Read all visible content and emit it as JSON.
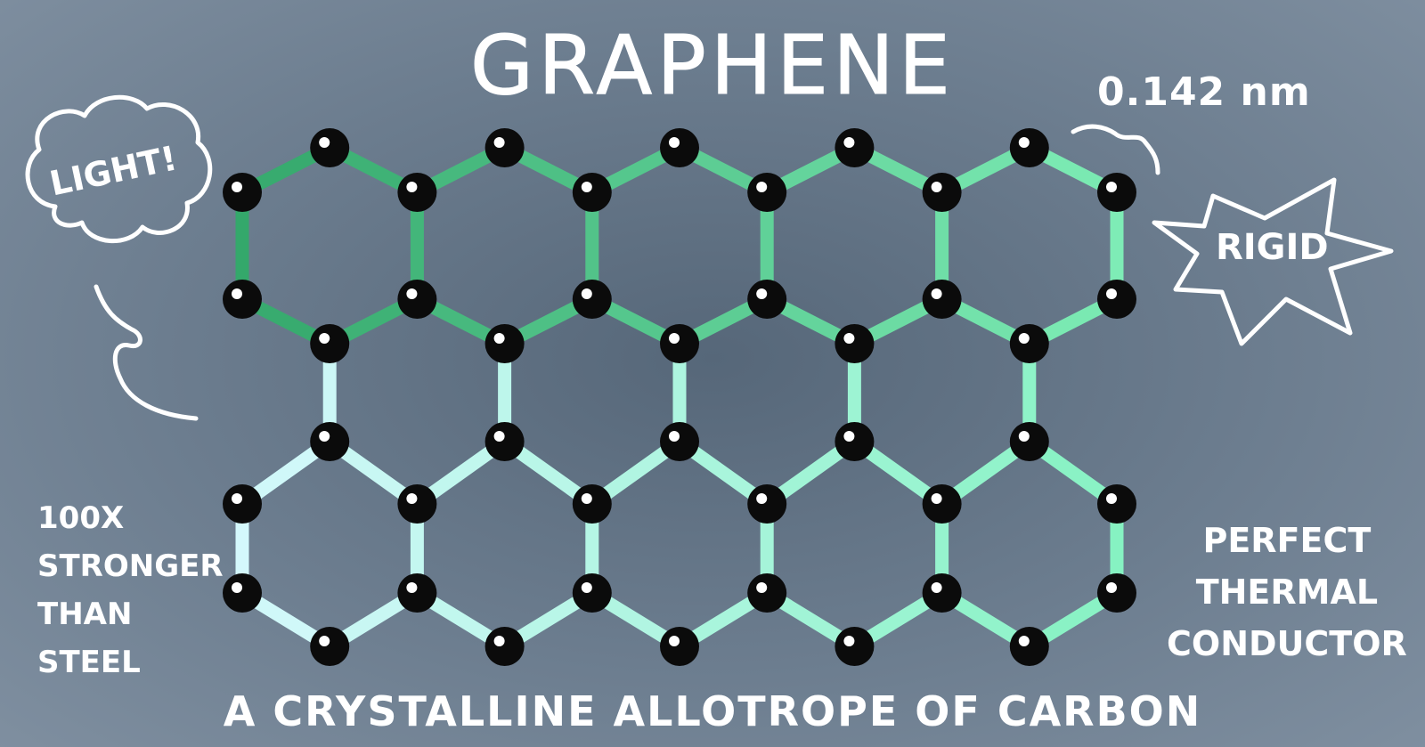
{
  "title": "GRAPHENE",
  "subtitle": "A CRYSTALLINE ALLOTROPE OF CARBON",
  "annotations": {
    "bond_length": "0.142 nm",
    "light": "LIGHT!",
    "rigid": "RIGID",
    "strength": [
      "100x",
      "STRONGER",
      "THAN",
      "STEEL"
    ],
    "thermal": [
      "PERFECT",
      "THERMAL",
      "CONDUCTOR"
    ]
  },
  "lattice": {
    "hex_columns": 5,
    "hex_rows": 2,
    "atom_color": "#0b0b0b",
    "bond_gradient_top": [
      "#34a86b",
      "#7eecb6"
    ],
    "bond_gradient_bottom": [
      "#d4f8fc",
      "#86f2c2"
    ]
  },
  "colors": {
    "background": "#6c7d8f",
    "text": "#ffffff"
  }
}
